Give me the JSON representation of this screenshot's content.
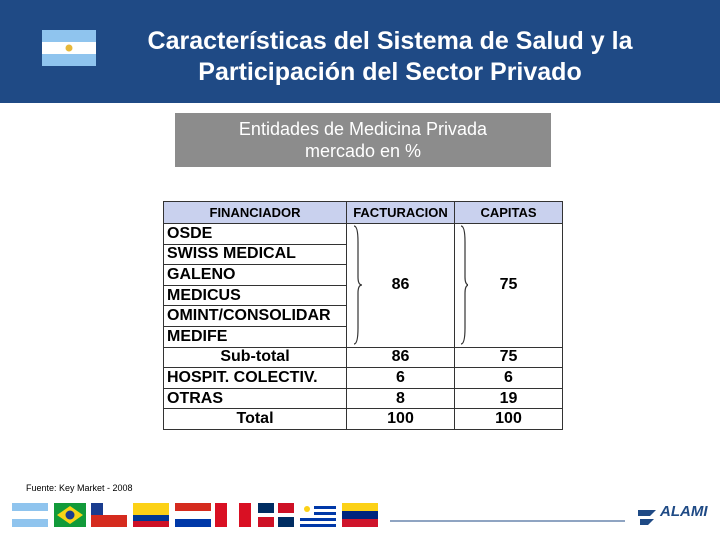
{
  "header": {
    "title_lines": [
      "Características del Sistema de Salud y la",
      "Participación del Sector Privado"
    ]
  },
  "subtitle": {
    "lines": [
      "Entidades de Medicina Privada",
      "mercado en %"
    ]
  },
  "table": {
    "columns": [
      "FINANCIADOR",
      "FACTURACION",
      "CAPITAS"
    ],
    "group": {
      "names": [
        "OSDE",
        "SWISS MEDICAL",
        "GALENO",
        "MEDICUS",
        "OMINT/CONSOLIDAR",
        "MEDIFE"
      ],
      "values": [
        86,
        75
      ]
    },
    "rows": [
      [
        "Sub-total",
        86,
        75
      ],
      [
        "HOSPIT. COLECTIV.",
        6,
        6
      ],
      [
        "OTRAS",
        8,
        19
      ],
      [
        "Total",
        100,
        100
      ]
    ]
  },
  "source": "Fuente: Key Market - 2008",
  "logo": "ALAMI"
}
